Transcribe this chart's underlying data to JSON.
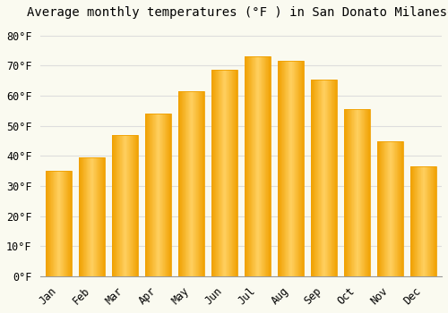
{
  "title": "Average monthly temperatures (°F ) in San Donato Milanese",
  "months": [
    "Jan",
    "Feb",
    "Mar",
    "Apr",
    "May",
    "Jun",
    "Jul",
    "Aug",
    "Sep",
    "Oct",
    "Nov",
    "Dec"
  ],
  "values": [
    35,
    39.5,
    47,
    54,
    61.5,
    68.5,
    73,
    71.5,
    65.5,
    55.5,
    45,
    36.5
  ],
  "bar_color_center": "#FFD060",
  "bar_color_edge": "#F0A000",
  "background_color": "#FAFAF0",
  "grid_color": "#DDDDDD",
  "ylim": [
    0,
    84
  ],
  "yticks": [
    0,
    10,
    20,
    30,
    40,
    50,
    60,
    70,
    80
  ],
  "title_fontsize": 10,
  "tick_fontsize": 8.5,
  "font_family": "monospace"
}
